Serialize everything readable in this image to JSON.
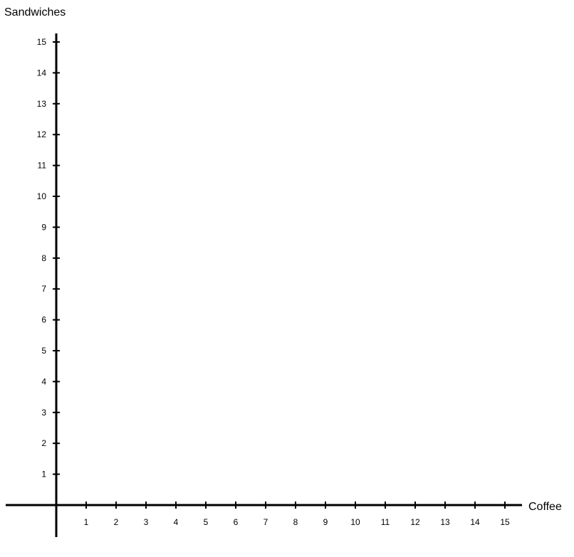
{
  "chart_data": {
    "type": "scatter",
    "xlabel": "Coffee",
    "ylabel": "Sandwiches",
    "xlim": [
      0,
      15
    ],
    "ylim": [
      0,
      15
    ],
    "x_ticks": [
      "1",
      "2",
      "3",
      "4",
      "5",
      "6",
      "7",
      "8",
      "9",
      "10",
      "11",
      "12",
      "13",
      "14",
      "15"
    ],
    "y_ticks": [
      "1",
      "2",
      "3",
      "4",
      "5",
      "6",
      "7",
      "8",
      "9",
      "10",
      "11",
      "12",
      "13",
      "14",
      "15"
    ],
    "series": [],
    "grid": false,
    "colors": {
      "axis": "#000000",
      "background": "#ffffff"
    }
  }
}
